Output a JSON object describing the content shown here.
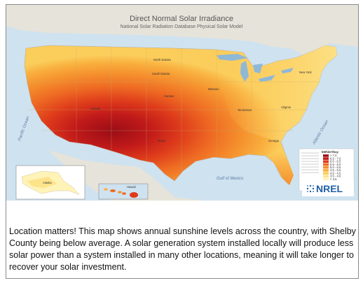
{
  "map": {
    "title": "Direct Normal Solar Irradiance",
    "subtitle": "National Solar Radiation Database Physical Solar Model",
    "logo": "NREL",
    "legend_title": "kWh/m²/Day",
    "legend_entries": [
      "> 7.0",
      "6.5 - 7.0",
      "6.0 - 6.5",
      "5.5 - 6.0",
      "5.0 - 5.5",
      "4.5 - 5.0",
      "4.0 - 4.5",
      "3.5 - 4.0",
      "< 3.5"
    ],
    "legend_colors": [
      "#9a0d16",
      "#c11a1a",
      "#de3b1b",
      "#ee6a23",
      "#f58f2d",
      "#f9b03e",
      "#fbcd5b",
      "#fde38a",
      "#fff3b8"
    ],
    "ocean_labels": [
      "Pacific Ocean",
      "Atlantic Ocean",
      "Gulf of Mexico"
    ],
    "insets": [
      "Alaska",
      "Hawaii"
    ]
  },
  "caption": {
    "text": "Location matters! This map shows annual sunshine levels across the country, with Shelby County being below average.  A solar generation system installed locally will produce less solar power than a system installed in many other locations, meaning it will take longer to recover your solar investment."
  }
}
